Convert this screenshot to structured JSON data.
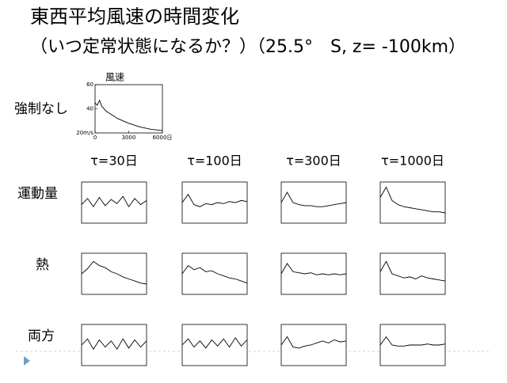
{
  "title_lines": [
    "東西平均風速の時間変化",
    "（いつ定常状態になるか？）（25.5°　S, z= -100km）"
  ],
  "reference": {
    "row_label": "強制なし",
    "title": "風速",
    "ylim": [
      20,
      60
    ],
    "yticks": [
      {
        "value": 20,
        "label": "20m/s"
      },
      40,
      60
    ],
    "xlim": [
      0,
      6000
    ],
    "xticks": [
      0,
      3000,
      {
        "value": 6000,
        "label": "6000日"
      }
    ],
    "x": [
      0,
      200,
      400,
      600,
      1000,
      1500,
      2000,
      3000,
      4000,
      5000,
      6000
    ],
    "values": [
      45,
      43,
      47,
      42,
      38,
      35,
      32,
      28,
      25,
      23,
      22
    ]
  },
  "columns": [
    "τ=30日",
    "τ=100日",
    "τ=300日",
    "τ=1000日"
  ],
  "ylim": [
    20,
    60
  ],
  "rows": [
    {
      "label": "運動量",
      "panels": [
        [
          38,
          44,
          36,
          45,
          37,
          43,
          39,
          46,
          36,
          44,
          38,
          42
        ],
        [
          40,
          48,
          38,
          36,
          39,
          38,
          40,
          39,
          41,
          40,
          42,
          41
        ],
        [
          40,
          50,
          40,
          38,
          37,
          37,
          36,
          36,
          37,
          38,
          39,
          40
        ],
        [
          45,
          55,
          42,
          38,
          36,
          35,
          34,
          33,
          32,
          31,
          31,
          30
        ]
      ]
    },
    {
      "label": "熱",
      "panels": [
        [
          40,
          45,
          52,
          48,
          46,
          42,
          40,
          37,
          35,
          33,
          31,
          30
        ],
        [
          40,
          48,
          44,
          46,
          42,
          43,
          40,
          38,
          36,
          35,
          33,
          31
        ],
        [
          40,
          50,
          42,
          41,
          40,
          41,
          39,
          40,
          39,
          40,
          39,
          40
        ],
        [
          42,
          52,
          40,
          38,
          36,
          37,
          35,
          38,
          36,
          35,
          34,
          33
        ]
      ]
    },
    {
      "label": "両方",
      "panels": [
        [
          40,
          46,
          36,
          45,
          38,
          44,
          36,
          46,
          37,
          45,
          38,
          44
        ],
        [
          40,
          46,
          38,
          44,
          37,
          45,
          39,
          46,
          38,
          47,
          39,
          45
        ],
        [
          40,
          48,
          38,
          37,
          39,
          40,
          42,
          44,
          42,
          45,
          43,
          44
        ],
        [
          40,
          48,
          40,
          39,
          39,
          40,
          40,
          40,
          41,
          40,
          40,
          41
        ]
      ]
    }
  ]
}
